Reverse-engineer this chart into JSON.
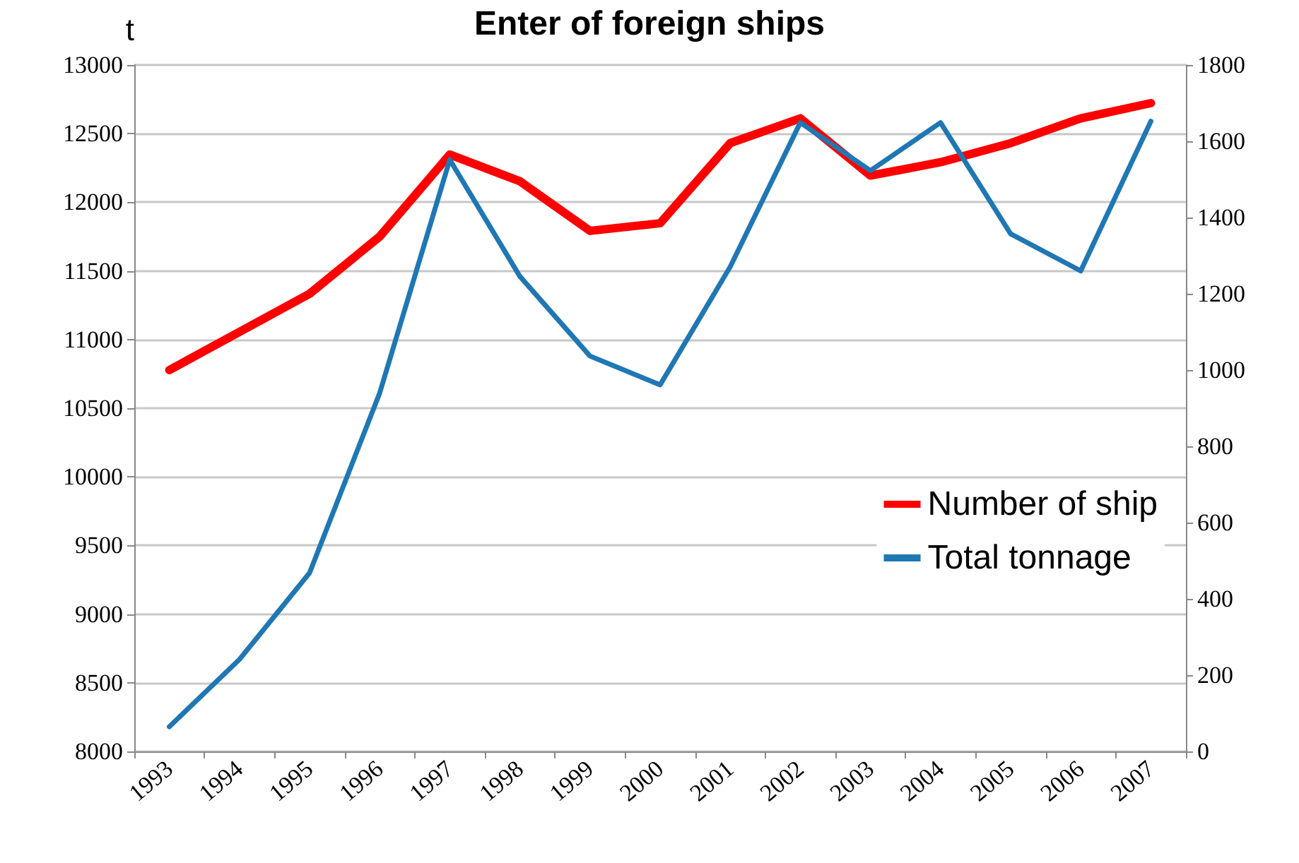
{
  "chart_data": {
    "type": "line",
    "title": "Enter of foreign ships",
    "ylabel": "t",
    "categories": [
      "1993",
      "1994",
      "1995",
      "1996",
      "1997",
      "1998",
      "1999",
      "2000",
      "2001",
      "2002",
      "2003",
      "2004",
      "2005",
      "2006",
      "2007"
    ],
    "series": [
      {
        "name": "Number of ship",
        "color": "#ff0000",
        "axis": "y2",
        "values": [
          1000,
          1100,
          1200,
          1350,
          1565,
          1495,
          1365,
          1385,
          1595,
          1660,
          1510,
          1545,
          1595,
          1660,
          1700
        ]
      },
      {
        "name": "Total tonnage",
        "color": "#1f77b4",
        "values": [
          8180,
          8670,
          9300,
          10610,
          12310,
          11460,
          10880,
          10670,
          11530,
          12580,
          12230,
          12580,
          11770,
          11500,
          12590
        ]
      }
    ],
    "ylim": [
      8000,
      13000
    ],
    "yticks": [
      8000,
      8500,
      9000,
      9500,
      10000,
      10500,
      11000,
      11500,
      12000,
      12500,
      13000
    ],
    "y2lim": [
      0,
      1800
    ],
    "y2ticks": [
      0,
      200,
      400,
      600,
      800,
      1000,
      1200,
      1400,
      1600,
      1800
    ],
    "grid": "y",
    "legend": "right",
    "marker": "none",
    "line_style": "solid"
  }
}
